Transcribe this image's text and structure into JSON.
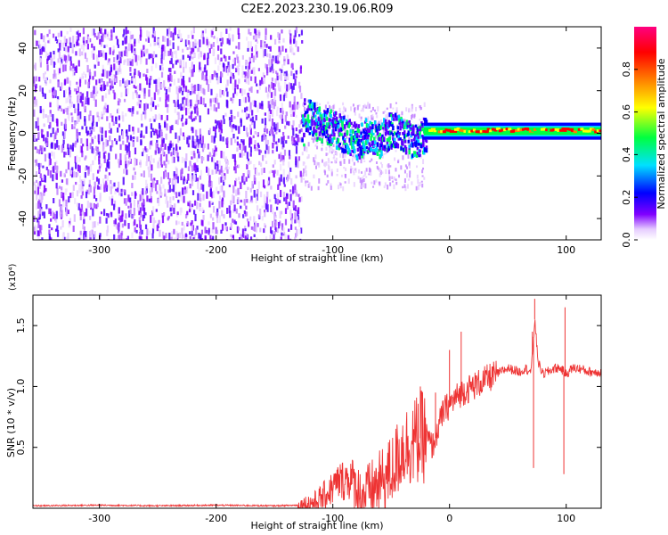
{
  "title": "C2E2.2023.230.19.06.R09",
  "chart_data": [
    {
      "type": "heatmap",
      "xlabel": "Height of straight line (km)",
      "ylabel": "Frequency (Hz)",
      "xlim": [
        -357,
        130
      ],
      "ylim": [
        -50,
        50
      ],
      "xticks": [
        -300,
        -200,
        -100,
        0,
        100
      ],
      "xtick_labels": [
        "-300",
        "-200",
        "-100",
        "0",
        "100"
      ],
      "yticks": [
        -40,
        -20,
        0,
        20,
        40
      ],
      "ytick_labels": [
        "-40",
        "-20",
        "0",
        "20",
        "40"
      ],
      "colorbar": {
        "label": "Normalized spectral amplitude",
        "range": [
          0,
          1
        ],
        "ticks": [
          0.0,
          0.2,
          0.4,
          0.6,
          0.8
        ],
        "tick_labels": [
          "0.0",
          "0.2",
          "0.4",
          "0.6",
          "0.8"
        ],
        "stops": [
          "#ffffff",
          "#e6ccff",
          "#8000ff",
          "#0000ff",
          "#00e0ff",
          "#00ff40",
          "#ffff00",
          "#ff8000",
          "#ff0000",
          "#ff0080"
        ]
      },
      "ridge": [
        {
          "x": -125,
          "y": 10
        },
        {
          "x": -115,
          "y": 6
        },
        {
          "x": -100,
          "y": 3
        },
        {
          "x": -90,
          "y": 0
        },
        {
          "x": -80,
          "y": -3
        },
        {
          "x": -70,
          "y": 0
        },
        {
          "x": -60,
          "y": -2
        },
        {
          "x": -50,
          "y": 3
        },
        {
          "x": -40,
          "y": 0
        },
        {
          "x": -30,
          "y": -4
        },
        {
          "x": -20,
          "y": 1
        },
        {
          "x": 0,
          "y": 1
        },
        {
          "x": 50,
          "y": 1
        },
        {
          "x": 100,
          "y": 1
        },
        {
          "x": 130,
          "y": 1
        }
      ]
    },
    {
      "type": "line",
      "xlabel": "Height of straight line (km)",
      "ylabel": "SNR (10 * v/v)",
      "multiplier_label": "(x10⁴)",
      "xlim": [
        -357,
        130
      ],
      "ylim": [
        0,
        1.75
      ],
      "xticks": [
        -300,
        -200,
        -100,
        0,
        100
      ],
      "xtick_labels": [
        "-300",
        "-200",
        "-100",
        "0",
        "100"
      ],
      "yticks": [
        0.5,
        1.0,
        1.5
      ],
      "ytick_labels": [
        "0.5",
        "1.0",
        "1.5"
      ],
      "color": "#ee3333",
      "series": [
        {
          "name": "SNR",
          "x": [
            -357,
            -300,
            -250,
            -200,
            -150,
            -130,
            -115,
            -105,
            -95,
            -85,
            -75,
            -60,
            -50,
            -40,
            -30,
            -20,
            -15,
            -5,
            0,
            10,
            20,
            30,
            40,
            50,
            60,
            65,
            70,
            73,
            76,
            80,
            90,
            95,
            100,
            105,
            110,
            120,
            130
          ],
          "y": [
            0.02,
            0.025,
            0.02,
            0.025,
            0.02,
            0.025,
            0.05,
            0.12,
            0.22,
            0.25,
            0.1,
            0.2,
            0.3,
            0.5,
            0.55,
            0.6,
            0.5,
            0.8,
            0.85,
            0.95,
            1.0,
            1.05,
            1.1,
            1.15,
            1.12,
            1.15,
            1.12,
            1.55,
            1.2,
            1.1,
            1.15,
            1.15,
            1.1,
            1.15,
            1.15,
            1.12,
            1.12
          ]
        }
      ],
      "spikes": [
        {
          "x": 73,
          "y": 1.72
        },
        {
          "x": 71,
          "y": 1.45
        },
        {
          "x": 72,
          "y": 0.33
        },
        {
          "x": 98,
          "y": 0.28
        },
        {
          "x": 99,
          "y": 1.65
        },
        {
          "x": 10,
          "y": 1.45
        },
        {
          "x": 0,
          "y": 1.3
        },
        {
          "x": -25,
          "y": 1.0
        },
        {
          "x": -12,
          "y": 0.95
        }
      ]
    }
  ]
}
